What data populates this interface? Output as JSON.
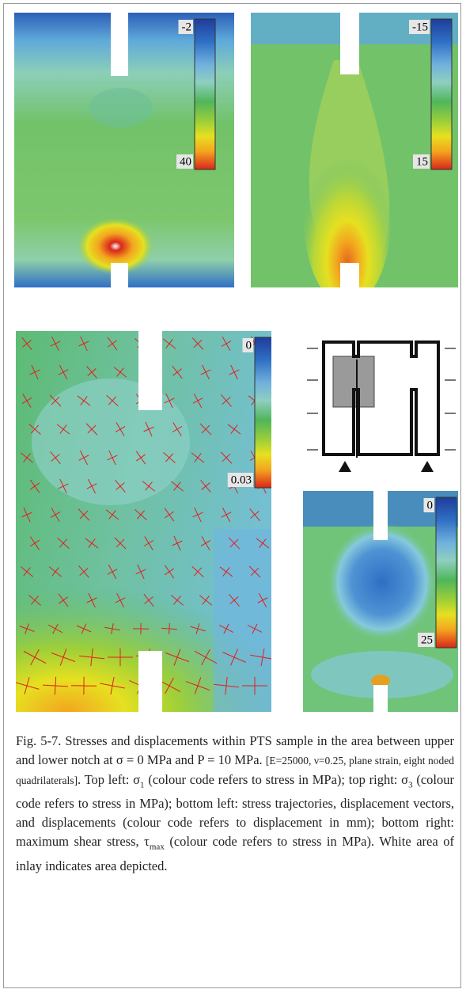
{
  "panels": [
    {
      "colorbar": {
        "top_label": "-2",
        "bottom_label": "40"
      }
    },
    {
      "colorbar": {
        "top_label": "-15",
        "bottom_label": "15"
      }
    },
    {
      "colorbar": {
        "top_label": "0",
        "bottom_label": "0.03"
      }
    },
    {
      "colorbar": {
        "top_label": "0",
        "bottom_label": "25"
      }
    }
  ],
  "caption": {
    "parts": [
      "Fig. 5-7. Stresses and displacements within PTS sample in the area between upper and lower notch at σ = 0 MPa and P = 10 MPa. ",
      "[E=25000, ν=0.25, plane strain, eight noded quadrilaterals]",
      ". Top left: σ",
      "1",
      " (colour code refers to stress in MPa); top right: σ",
      "3",
      " (colour code refers to stress in MPa); bottom left: stress trajectories, displacement vectors, and displacements (colour code refers to displacement in mm);  bottom right: maximum shear stress, τ",
      "max",
      " (colour code refers to stress in MPa). White area of inlay indicates area depicted."
    ]
  }
}
